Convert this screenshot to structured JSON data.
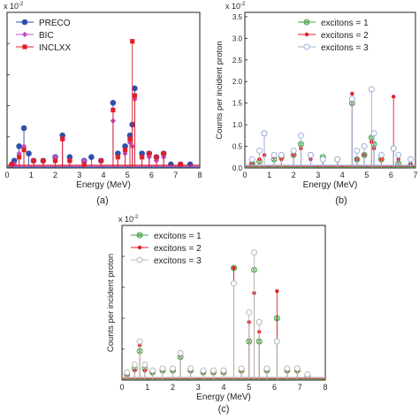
{
  "chart_data": [
    {
      "type": "line",
      "panel_label": "(a)",
      "xlabel": "Energy (MeV)",
      "ylabel": "",
      "scale_note": "x 10",
      "scale_exp": "-2",
      "xlim": [
        0,
        8
      ],
      "ylim": [
        0,
        0.043
      ],
      "xticks": [
        "0",
        "1",
        "2",
        "3",
        "4",
        "5",
        "6",
        "7",
        "8"
      ],
      "legend_position": "top-left",
      "series": [
        {
          "name": "PRECO",
          "color": "#2f4fa8",
          "marker": "circle",
          "x": [
            0.2,
            0.3,
            0.5,
            0.7,
            0.9,
            1.1,
            1.5,
            2.0,
            2.3,
            2.6,
            3.2,
            3.5,
            3.9,
            4.4,
            4.6,
            4.9,
            5.1,
            5.2,
            5.3,
            5.6,
            5.9,
            6.2,
            6.5,
            6.8,
            7.2,
            7.6
          ],
          "y": [
            0.001,
            0.002,
            0.006,
            0.011,
            0.004,
            0.002,
            0.002,
            0.003,
            0.009,
            0.003,
            0.002,
            0.003,
            0.002,
            0.018,
            0.004,
            0.006,
            0.009,
            0.012,
            0.022,
            0.004,
            0.004,
            0.003,
            0.004,
            0.001,
            0.001,
            0.001
          ]
        },
        {
          "name": "BIC",
          "color": "#c050c8",
          "marker": "diamond",
          "x": [
            0.3,
            0.5,
            0.7,
            1.1,
            1.5,
            2.0,
            2.3,
            2.6,
            3.2,
            3.9,
            4.4,
            4.6,
            4.9,
            5.1,
            5.2,
            5.3,
            5.6,
            5.9,
            6.2,
            6.5,
            7.2
          ],
          "y": [
            0.001,
            0.004,
            0.006,
            0.002,
            0.002,
            0.003,
            0.008,
            0.002,
            0.002,
            0.002,
            0.013,
            0.003,
            0.004,
            0.007,
            0.006,
            0.019,
            0.003,
            0.003,
            0.002,
            0.003,
            0.001
          ]
        },
        {
          "name": "INCLXX",
          "color": "#e0202a",
          "marker": "square",
          "x": [
            0.2,
            0.5,
            0.7,
            1.1,
            1.5,
            2.0,
            2.3,
            2.6,
            3.2,
            3.9,
            4.4,
            4.6,
            4.9,
            5.1,
            5.2,
            5.3,
            5.6,
            5.9,
            6.2,
            6.5,
            7.2
          ],
          "y": [
            0.001,
            0.003,
            0.005,
            0.002,
            0.002,
            0.002,
            0.008,
            0.002,
            0.001,
            0.002,
            0.016,
            0.003,
            0.005,
            0.008,
            0.035,
            0.02,
            0.003,
            0.004,
            0.003,
            0.004,
            0.001
          ]
        }
      ]
    },
    {
      "type": "line",
      "panel_label": "(b)",
      "xlabel": "Energy (MeV)",
      "ylabel": "Counts per incident proton",
      "scale_note": "x 10",
      "scale_exp": "-2",
      "xlim": [
        0,
        7
      ],
      "ylim": [
        0,
        3.6
      ],
      "xticks": [
        "0",
        "1",
        "2",
        "3",
        "4",
        "5",
        "6",
        "7"
      ],
      "yticks": [
        "0.0",
        "0.5",
        "1.0",
        "1.5",
        "2.0",
        "2.5",
        "3.0",
        "3.5"
      ],
      "legend_position": "top-right",
      "series": [
        {
          "name": "excitons = 1",
          "color": "#4aa24a",
          "marker": "circle-x",
          "x": [
            0.3,
            0.6,
            0.8,
            1.2,
            1.5,
            2.0,
            2.3,
            2.7,
            3.2,
            3.8,
            4.4,
            4.6,
            4.9,
            5.2,
            5.3,
            5.6,
            6.1,
            6.3,
            6.8
          ],
          "y": [
            0.1,
            0.15,
            0.8,
            0.2,
            0.25,
            0.3,
            0.55,
            0.3,
            0.25,
            0.2,
            1.5,
            0.2,
            0.3,
            0.7,
            0.55,
            0.2,
            0.45,
            0.1,
            0.05
          ]
        },
        {
          "name": "excitons = 2",
          "color": "#e0202a",
          "marker": "dot",
          "x": [
            0.3,
            0.6,
            0.8,
            1.2,
            1.5,
            2.0,
            2.3,
            2.7,
            3.2,
            3.8,
            4.4,
            4.6,
            4.9,
            5.2,
            5.3,
            5.6,
            6.1,
            6.3,
            6.8
          ],
          "y": [
            0.1,
            0.2,
            0.3,
            0.25,
            0.2,
            0.3,
            0.45,
            0.2,
            0.2,
            0.2,
            1.72,
            0.2,
            0.3,
            0.6,
            0.45,
            0.2,
            1.65,
            0.2,
            0.1
          ]
        },
        {
          "name": "excitons = 3",
          "color": "#9fb0d8",
          "marker": "open-circle",
          "x": [
            0.3,
            0.6,
            0.8,
            1.2,
            1.5,
            2.0,
            2.3,
            2.7,
            3.2,
            3.8,
            4.4,
            4.6,
            4.9,
            5.2,
            5.3,
            5.6,
            6.1,
            6.3,
            6.8
          ],
          "y": [
            0.2,
            0.4,
            0.8,
            0.3,
            0.3,
            0.4,
            0.75,
            0.3,
            0.2,
            0.2,
            1.6,
            0.4,
            0.5,
            1.82,
            0.8,
            0.3,
            0.45,
            0.3,
            0.2
          ]
        }
      ]
    },
    {
      "type": "line",
      "panel_label": "(c)",
      "xlabel": "Energy (MeV)",
      "ylabel": "Counts per incident proton",
      "scale_note": "x 10",
      "scale_exp": "-2",
      "xlim": [
        0,
        8
      ],
      "ylim": [
        0,
        0.8
      ],
      "xticks": [
        "0",
        "1",
        "2",
        "3",
        "4",
        "5",
        "6",
        "7",
        "8"
      ],
      "legend_position": "top-left",
      "series": [
        {
          "name": "excitons = 1",
          "color": "#4aa24a",
          "marker": "circle-x",
          "x": [
            0.2,
            0.5,
            0.7,
            0.9,
            1.2,
            1.6,
            2.0,
            2.3,
            2.7,
            3.2,
            3.6,
            4.0,
            4.4,
            4.7,
            5.0,
            5.2,
            5.4,
            5.7,
            6.1,
            6.5,
            6.9,
            7.3
          ],
          "y": [
            0.03,
            0.06,
            0.15,
            0.06,
            0.04,
            0.05,
            0.05,
            0.12,
            0.05,
            0.04,
            0.04,
            0.04,
            0.58,
            0.05,
            0.2,
            0.57,
            0.2,
            0.05,
            0.32,
            0.05,
            0.05,
            0.02
          ]
        },
        {
          "name": "excitons = 2",
          "color": "#e0202a",
          "marker": "dot",
          "x": [
            0.2,
            0.5,
            0.7,
            0.9,
            1.2,
            1.6,
            2.0,
            2.3,
            2.7,
            3.2,
            3.6,
            4.0,
            4.4,
            4.7,
            5.0,
            5.2,
            5.4,
            5.7,
            6.1,
            6.5,
            6.9,
            7.3
          ],
          "y": [
            0.03,
            0.05,
            0.18,
            0.05,
            0.04,
            0.05,
            0.05,
            0.13,
            0.05,
            0.04,
            0.04,
            0.04,
            0.58,
            0.05,
            0.3,
            0.45,
            0.25,
            0.05,
            0.46,
            0.05,
            0.05,
            0.02
          ]
        },
        {
          "name": "excitons = 3",
          "color": "#b8b8b8",
          "marker": "open-circle",
          "x": [
            0.2,
            0.5,
            0.7,
            0.9,
            1.2,
            1.6,
            2.0,
            2.3,
            2.7,
            3.2,
            3.6,
            4.0,
            4.4,
            4.7,
            5.0,
            5.2,
            5.4,
            5.7,
            6.1,
            6.5,
            6.9,
            7.3
          ],
          "y": [
            0.04,
            0.08,
            0.2,
            0.08,
            0.05,
            0.06,
            0.06,
            0.14,
            0.06,
            0.05,
            0.05,
            0.05,
            0.5,
            0.06,
            0.35,
            0.66,
            0.3,
            0.06,
            0.2,
            0.06,
            0.06,
            0.03
          ]
        }
      ]
    }
  ]
}
